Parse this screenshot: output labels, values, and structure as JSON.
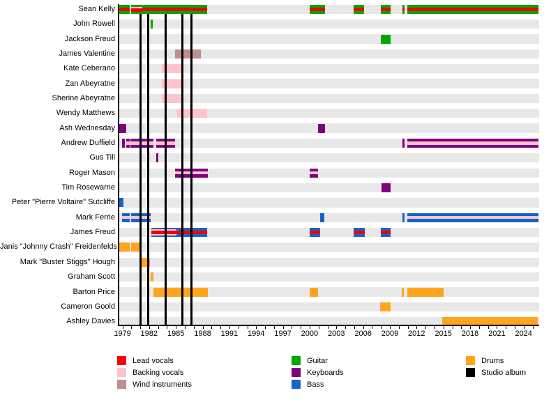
{
  "chart_data": {
    "type": "timeline",
    "title": "",
    "description": "Band members timeline (gantt-style) with instrument roles and studio album release markers",
    "x_axis": {
      "label_years": [
        1979,
        1982,
        1985,
        1988,
        1991,
        1994,
        1997,
        2000,
        2003,
        2006,
        2009,
        2012,
        2015,
        2018,
        2021,
        2024
      ],
      "minor_tick_first": 1979,
      "minor_tick_last": 2025,
      "minor_tick_step": 1,
      "range_start": 1978.55,
      "range_end": 2025.75
    },
    "albums": {
      "label": "Studio album",
      "years": [
        1981.05,
        1981.9,
        1983.85,
        1985.75,
        1986.75
      ]
    },
    "colors": {
      "lead": "#F00000",
      "backing": "#FFC3CC",
      "wind": "#BC8F8F",
      "guitar": "#00A800",
      "keys": "#800080",
      "bass": "#1565C8",
      "drums": "#FFA51E",
      "album": "#000000",
      "band_bg": "#E8E8E8",
      "axis": "#000000"
    },
    "recipes": {
      "guitar": [
        [
          "guitar",
          1
        ]
      ],
      "keys": [
        [
          "keys",
          1
        ]
      ],
      "bass": [
        [
          "bass",
          1
        ]
      ],
      "drums": [
        [
          "drums",
          1
        ]
      ],
      "backing": [
        [
          "backing",
          1
        ]
      ],
      "wind": [
        [
          "wind",
          1
        ]
      ],
      "guitar_lead": [
        [
          "guitar",
          0.31
        ],
        [
          "lead",
          0.38
        ],
        [
          "guitar",
          0.31
        ]
      ],
      "guitar_lead_backing": [
        [
          "guitar",
          0.24
        ],
        [
          "backing",
          0.16
        ],
        [
          "lead",
          0.36
        ],
        [
          "guitar",
          0.24
        ]
      ],
      "keys_backing": [
        [
          "keys",
          0.33
        ],
        [
          "backing",
          0.34
        ],
        [
          "keys",
          0.33
        ]
      ],
      "bass_backing": [
        [
          "bass",
          0.33
        ],
        [
          "backing",
          0.34
        ],
        [
          "bass",
          0.33
        ]
      ],
      "bass_lead": [
        [
          "bass",
          0.31
        ],
        [
          "lead",
          0.38
        ],
        [
          "bass",
          0.31
        ]
      ],
      "bass_lead_backing": [
        [
          "bass",
          0.18
        ],
        [
          "backing",
          0.12
        ],
        [
          "lead",
          0.4
        ],
        [
          "backing",
          0.12
        ],
        [
          "bass",
          0.18
        ]
      ]
    },
    "members": [
      {
        "name": "Sean Kelly",
        "front": true,
        "segments": [
          {
            "start": 1978.55,
            "end": 1979.85,
            "recipe": "guitar_lead"
          },
          {
            "start": 1979.95,
            "end": 1981.2,
            "recipe": "guitar_lead_backing"
          },
          {
            "start": 1981.2,
            "end": 1988.5,
            "recipe": "guitar_lead"
          },
          {
            "start": 2000.0,
            "end": 2001.7,
            "recipe": "guitar_lead"
          },
          {
            "start": 2004.9,
            "end": 2006.1,
            "recipe": "guitar_lead"
          },
          {
            "start": 2008.0,
            "end": 2009.1,
            "recipe": "guitar_lead"
          },
          {
            "start": 2010.4,
            "end": 2010.65,
            "recipe": "guitar_lead"
          },
          {
            "start": 2010.95,
            "end": 2025.7,
            "recipe": "guitar_lead"
          }
        ]
      },
      {
        "name": "John Rowell",
        "segments": [
          {
            "start": 1982.15,
            "end": 1982.4,
            "recipe": "guitar"
          }
        ]
      },
      {
        "name": "Jackson Freud",
        "segments": [
          {
            "start": 2008.0,
            "end": 2009.05,
            "recipe": "guitar"
          }
        ]
      },
      {
        "name": "James Valentine",
        "segments": [
          {
            "start": 1984.9,
            "end": 1987.8,
            "recipe": "wind"
          }
        ]
      },
      {
        "name": "Kate Ceberano",
        "segments": [
          {
            "start": 1983.4,
            "end": 1985.85,
            "recipe": "backing"
          }
        ]
      },
      {
        "name": "Zan Abeyratne",
        "segments": [
          {
            "start": 1983.4,
            "end": 1985.85,
            "recipe": "backing"
          }
        ]
      },
      {
        "name": "Sherine Abeyratne",
        "segments": [
          {
            "start": 1983.4,
            "end": 1985.85,
            "recipe": "backing"
          }
        ]
      },
      {
        "name": "Wendy Matthews",
        "segments": [
          {
            "start": 1985.1,
            "end": 1988.5,
            "recipe": "backing"
          }
        ]
      },
      {
        "name": "Ash Wednesday",
        "segments": [
          {
            "start": 1978.55,
            "end": 1979.45,
            "recipe": "keys"
          },
          {
            "start": 2000.95,
            "end": 2001.7,
            "recipe": "keys"
          }
        ]
      },
      {
        "name": "Andrew Duffield",
        "segments": [
          {
            "start": 1978.95,
            "end": 1979.25,
            "recipe": "keys"
          },
          {
            "start": 1979.45,
            "end": 1979.8,
            "recipe": "keys_backing"
          },
          {
            "start": 1979.9,
            "end": 1982.5,
            "recipe": "keys_backing"
          },
          {
            "start": 1982.8,
            "end": 1984.9,
            "recipe": "keys_backing"
          },
          {
            "start": 2010.4,
            "end": 2010.65,
            "recipe": "keys"
          },
          {
            "start": 2010.95,
            "end": 2025.7,
            "recipe": "keys_backing"
          }
        ]
      },
      {
        "name": "Gus Till",
        "segments": [
          {
            "start": 1982.8,
            "end": 1983.05,
            "recipe": "keys"
          }
        ]
      },
      {
        "name": "Roger Mason",
        "segments": [
          {
            "start": 1984.9,
            "end": 1988.55,
            "recipe": "keys_backing"
          },
          {
            "start": 2000.0,
            "end": 2000.95,
            "recipe": "keys_backing"
          }
        ]
      },
      {
        "name": "Tim Rosewarne",
        "segments": [
          {
            "start": 2008.05,
            "end": 2009.1,
            "recipe": "keys"
          }
        ]
      },
      {
        "name": "Peter \"Pierre Voltaire\" Sutcliffe",
        "segments": [
          {
            "start": 1978.55,
            "end": 1979.1,
            "recipe": "bass"
          }
        ]
      },
      {
        "name": "Mark Ferrie",
        "segments": [
          {
            "start": 1978.95,
            "end": 1979.85,
            "recipe": "bass_backing"
          },
          {
            "start": 1979.95,
            "end": 1982.15,
            "recipe": "bass_backing"
          },
          {
            "start": 2001.15,
            "end": 2001.65,
            "recipe": "bass"
          },
          {
            "start": 2010.4,
            "end": 2010.65,
            "recipe": "bass"
          },
          {
            "start": 2010.95,
            "end": 2025.7,
            "recipe": "bass_backing"
          }
        ]
      },
      {
        "name": "James Freud",
        "segments": [
          {
            "start": 1982.25,
            "end": 1985.05,
            "recipe": "bass_lead_backing"
          },
          {
            "start": 1985.05,
            "end": 1988.5,
            "recipe": "bass_lead"
          },
          {
            "start": 2000.0,
            "end": 2001.2,
            "recipe": "bass_lead"
          },
          {
            "start": 2004.9,
            "end": 2006.15,
            "recipe": "bass_lead"
          },
          {
            "start": 2008.0,
            "end": 2009.1,
            "recipe": "bass_lead"
          }
        ]
      },
      {
        "name": "Janis \"Johnny Crash\" Freidenfelds",
        "segments": [
          {
            "start": 1978.6,
            "end": 1979.85,
            "recipe": "drums"
          },
          {
            "start": 1980.0,
            "end": 1981.05,
            "recipe": "drums"
          }
        ]
      },
      {
        "name": "Mark \"Buster Stiggs\" Hough",
        "segments": [
          {
            "start": 1981.1,
            "end": 1982.1,
            "recipe": "drums"
          }
        ]
      },
      {
        "name": "Graham Scott",
        "segments": [
          {
            "start": 1982.2,
            "end": 1982.45,
            "recipe": "drums"
          }
        ]
      },
      {
        "name": "Barton Price",
        "segments": [
          {
            "start": 1982.45,
            "end": 1988.55,
            "recipe": "drums"
          },
          {
            "start": 2000.0,
            "end": 2000.95,
            "recipe": "drums"
          },
          {
            "start": 2010.35,
            "end": 2010.6,
            "recipe": "drums"
          },
          {
            "start": 2010.95,
            "end": 2015.05,
            "recipe": "drums"
          }
        ]
      },
      {
        "name": "Cameron Goold",
        "segments": [
          {
            "start": 2007.9,
            "end": 2009.1,
            "recipe": "drums"
          }
        ]
      },
      {
        "name": "Ashley Davies",
        "segments": [
          {
            "start": 2014.9,
            "end": 2025.6,
            "recipe": "drums"
          }
        ]
      }
    ],
    "legend": {
      "columns": [
        [
          {
            "label": "Lead vocals",
            "color": "lead_pure"
          },
          {
            "label": "Backing vocals",
            "color": "backing"
          },
          {
            "label": "Wind instruments",
            "color": "wind"
          }
        ],
        [
          {
            "label": "Guitar",
            "color": "guitar"
          },
          {
            "label": "Keyboards",
            "color": "keys"
          },
          {
            "label": "Bass",
            "color": "bass"
          }
        ],
        [
          {
            "label": "Drums",
            "color": "drums"
          },
          {
            "label": "Studio album",
            "color": "album"
          }
        ]
      ],
      "lead_pure": "#FF0000"
    }
  }
}
